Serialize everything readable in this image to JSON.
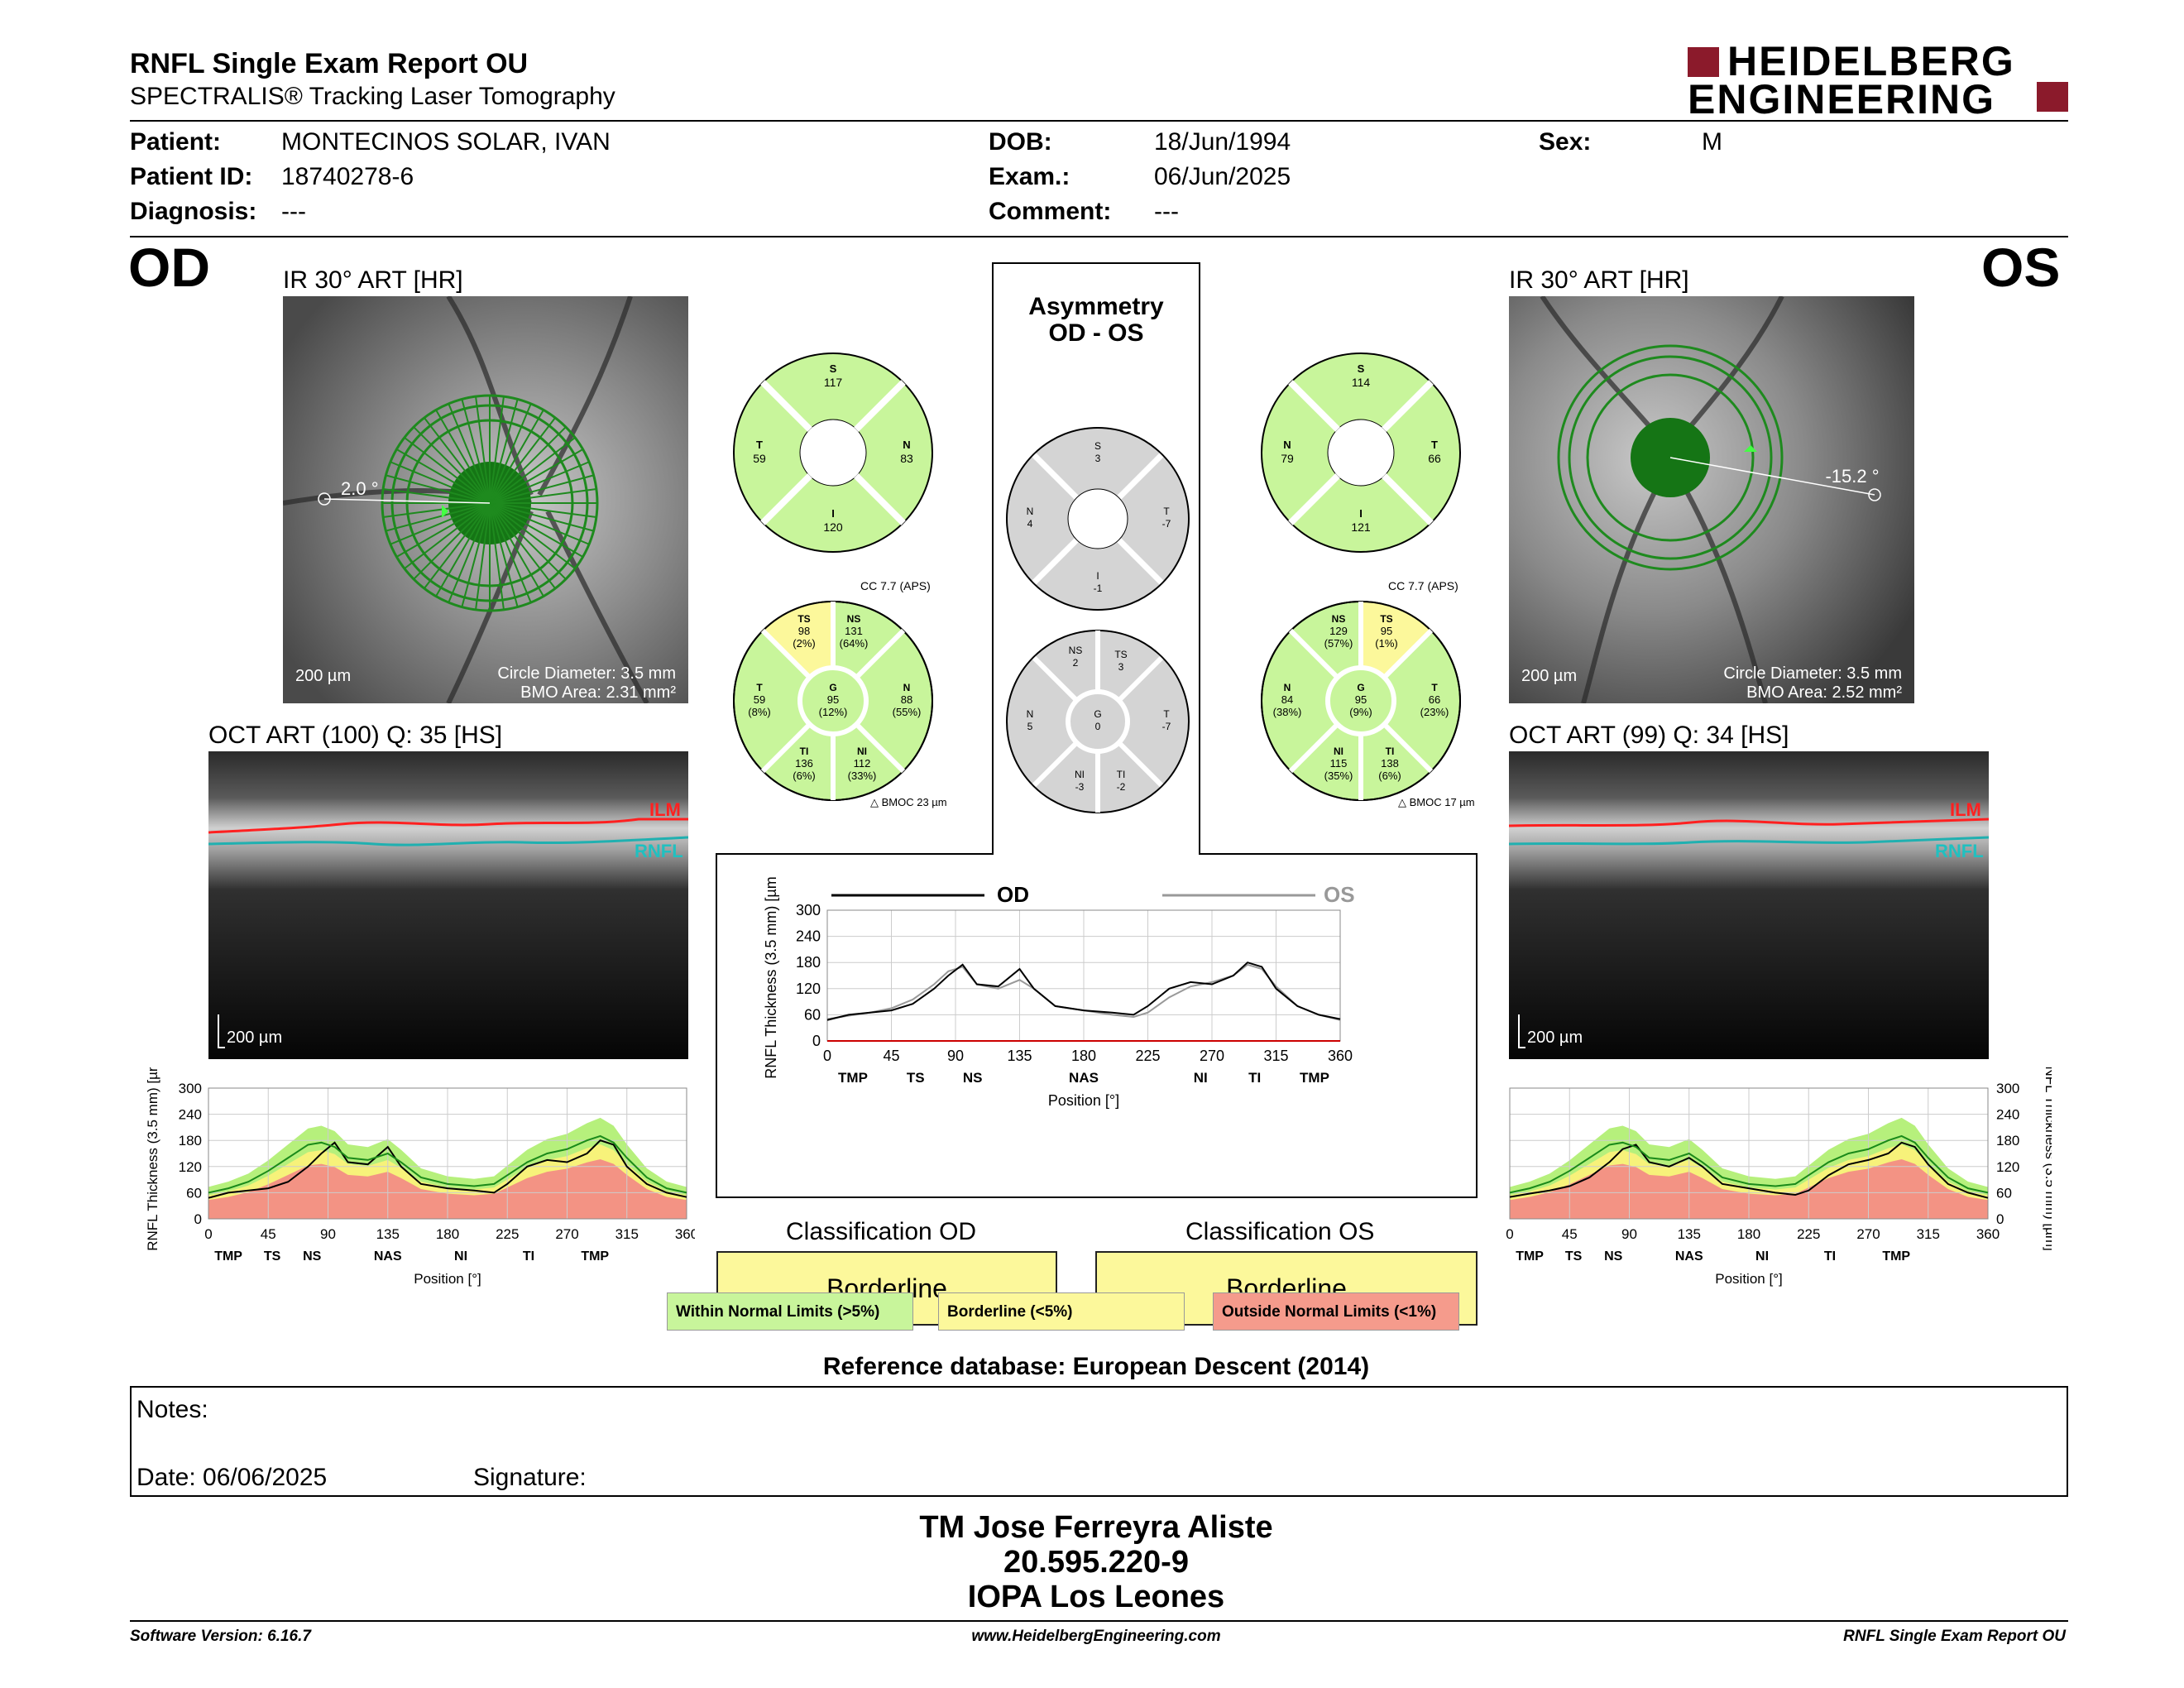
{
  "header": {
    "title": "RNFL Single Exam Report OU",
    "subtitle": "SPECTRALIS® Tracking Laser Tomography",
    "logo_line1": "HEIDELBERG",
    "logo_line2": "ENGINEERING"
  },
  "patient": {
    "patient_label": "Patient:",
    "patient_value": "MONTECINOS SOLAR, IVAN",
    "id_label": "Patient ID:",
    "id_value": "18740278-6",
    "diagnosis_label": "Diagnosis:",
    "diagnosis_value": "---",
    "dob_label": "DOB:",
    "dob_value": "18/Jun/1994",
    "exam_label": "Exam.:",
    "exam_value": "06/Jun/2025",
    "comment_label": "Comment:",
    "comment_value": "---",
    "sex_label": "Sex:",
    "sex_value": "M"
  },
  "od": {
    "eye": "OD",
    "ir_title": "IR 30° ART [HR]",
    "angle": "2.0 °",
    "scale": "200 µm",
    "circle_diameter": "Circle Diameter: 3.5 mm",
    "bmo_area": "BMO Area: 2.31 mm²",
    "oct_title": "OCT ART (100) Q: 35 [HS]",
    "oct_scale": "200 µm",
    "ilm": "ILM",
    "rnfl": "RNFL",
    "cc": "CC 7.7 (APS)",
    "bmoc": "BMOC 23 µm",
    "quad": {
      "S": "117",
      "T": "59",
      "N": "83",
      "I": "120"
    },
    "sectors": {
      "TS": [
        "98",
        "(2%)"
      ],
      "NS": [
        "131",
        "(64%)"
      ],
      "T": [
        "59",
        "(8%)"
      ],
      "G": [
        "95",
        "(12%)"
      ],
      "N": [
        "88",
        "(55%)"
      ],
      "TI": [
        "136",
        "(6%)"
      ],
      "NI": [
        "112",
        "(33%)"
      ]
    },
    "classification_title": "Classification OD",
    "classification": "Borderline"
  },
  "os": {
    "eye": "OS",
    "ir_title": "IR 30° ART [HR]",
    "angle": "-15.2 °",
    "scale": "200 µm",
    "circle_diameter": "Circle Diameter: 3.5 mm",
    "bmo_area": "BMO Area: 2.52 mm²",
    "oct_title": "OCT ART (99) Q: 34 [HS]",
    "oct_scale": "200 µm",
    "ilm": "ILM",
    "rnfl": "RNFL",
    "cc": "CC 7.7 (APS)",
    "bmoc": "BMOC 17 µm",
    "quad": {
      "S": "114",
      "T": "66",
      "N": "79",
      "I": "121"
    },
    "sectors": {
      "TS": [
        "95",
        "(1%)"
      ],
      "NS": [
        "129",
        "(57%)"
      ],
      "T": [
        "66",
        "(23%)"
      ],
      "G": [
        "95",
        "(9%)"
      ],
      "N": [
        "84",
        "(38%)"
      ],
      "TI": [
        "138",
        "(6%)"
      ],
      "NI": [
        "115",
        "(35%)"
      ]
    },
    "classification_title": "Classification OS",
    "classification": "Borderline"
  },
  "asym": {
    "title1": "Asymmetry",
    "title2": "OD - OS",
    "quad": {
      "S": "3",
      "T": "-7",
      "N": "4",
      "I": "-1"
    },
    "sectors": {
      "NS": "2",
      "TS": "3",
      "N": "5",
      "G": "0",
      "T": "-7",
      "NI": "-3",
      "TI": "-2"
    }
  },
  "chart_labels": {
    "ylabel": "RNFL Thickness (3.5 mm) [µm]",
    "xlabel": "Position [°]",
    "od_legend": "OD",
    "os_legend": "OS",
    "x_ticks": [
      "0",
      "45",
      "90",
      "135",
      "180",
      "225",
      "270",
      "315",
      "360"
    ],
    "y_ticks": [
      "0",
      "60",
      "120",
      "180",
      "240",
      "300"
    ],
    "od_sectors": [
      "TMP",
      "TS",
      "NS",
      "NAS",
      "NI",
      "TI",
      "TMP"
    ],
    "os_sectors": [
      "TMP",
      "TS",
      "NS",
      "NAS",
      "NI",
      "TI",
      "TMP"
    ],
    "center_sectors": [
      "TMP",
      "TS",
      "NS",
      "NAS",
      "NI",
      "TI",
      "TMP"
    ]
  },
  "chart_data": [
    {
      "type": "line",
      "title": "OD",
      "xlabel": "Position [°]",
      "ylabel": "RNFL Thickness (3.5 mm) [µm]",
      "xlim": [
        0,
        360
      ],
      "ylim": [
        0,
        300
      ],
      "x": [
        0,
        15,
        30,
        45,
        60,
        75,
        85,
        95,
        105,
        120,
        135,
        145,
        160,
        180,
        200,
        215,
        225,
        240,
        255,
        270,
        285,
        295,
        305,
        315,
        330,
        345,
        360
      ],
      "series": [
        {
          "name": "OD",
          "values": [
            48,
            60,
            65,
            70,
            85,
            120,
            150,
            175,
            130,
            125,
            165,
            120,
            80,
            70,
            65,
            60,
            80,
            120,
            135,
            130,
            150,
            180,
            170,
            120,
            80,
            60,
            50
          ]
        }
      ]
    },
    {
      "type": "line",
      "title": "OS",
      "xlabel": "Position [°]",
      "ylabel": "RNFL Thickness (3.5 mm) [µm]",
      "xlim": [
        0,
        360
      ],
      "ylim": [
        0,
        300
      ],
      "x": [
        0,
        15,
        30,
        45,
        60,
        75,
        85,
        95,
        105,
        120,
        135,
        145,
        160,
        180,
        200,
        215,
        225,
        240,
        255,
        270,
        285,
        295,
        305,
        315,
        330,
        345,
        360
      ],
      "series": [
        {
          "name": "OS",
          "values": [
            50,
            58,
            65,
            75,
            95,
            130,
            160,
            170,
            130,
            120,
            140,
            120,
            80,
            70,
            60,
            55,
            65,
            100,
            125,
            135,
            150,
            175,
            165,
            125,
            80,
            60,
            48
          ]
        }
      ]
    }
  ],
  "legend": {
    "within": "Within Normal Limits (>5%)",
    "border": "Borderline (<5%)",
    "outside": "Outside Normal Limits (<1%)"
  },
  "reference": "Reference database: European Descent (2014)",
  "notes": {
    "notes_label": "Notes:",
    "date_label": "Date: 06/06/2025",
    "signature_label": "Signature:"
  },
  "signer": {
    "name": "TM Jose Ferreyra Aliste",
    "rut": "20.595.220-9",
    "org": "IOPA Los Leones"
  },
  "footer": {
    "version": "Software Version: 6.16.7",
    "url": "www.HeidelbergEngineering.com",
    "report": "RNFL Single Exam Report OU"
  },
  "colors": {
    "green": "#c8f59b",
    "yellow": "#fcf89b",
    "red": "#f59b8c",
    "gray": "#d4d4d4",
    "brand": "#8b1a2b"
  }
}
